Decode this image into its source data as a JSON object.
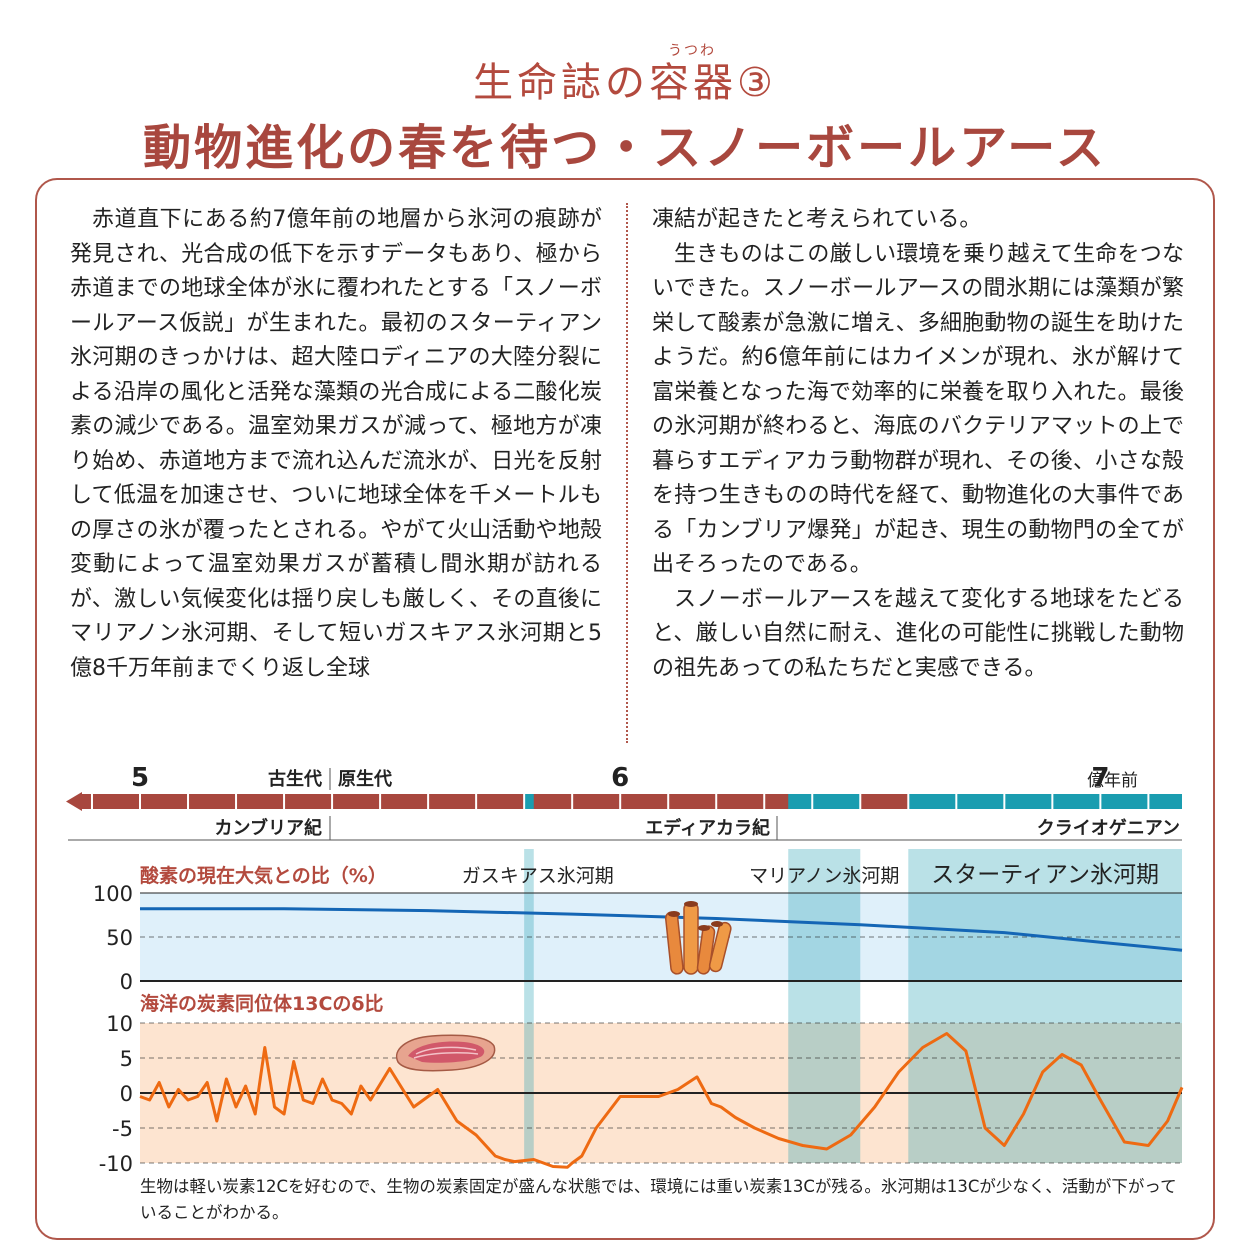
{
  "header": {
    "subtitle": "生命誌の容器③",
    "ruby": "うつわ",
    "title": "動物進化の春を待つ・スノーボールアース"
  },
  "body": {
    "left_paragraphs": [
      "赤道直下にある約7億年前の地層から氷河の痕跡が発見され、光合成の低下を示すデータもあり、極から赤道までの地球全体が氷に覆われたとする「スノーボールアース仮説」が生まれた。最初のスターティアン氷河期のきっかけは、超大陸ロディニアの大陸分裂による沿岸の風化と活発な藻類の光合成による二酸化炭素の減少である。温室効果ガスが減って、極地方が凍り始め、赤道地方まで流れ込んだ流氷が、日光を反射して低温を加速させ、ついに地球全体を千メートルもの厚さの氷が覆ったとされる。やがて火山活動や地殻変動によって温室効果ガスが蓄積し間氷期が訪れるが、激しい気候変化は揺り戻しも厳しく、その直後にマリアノン氷河期、そして短いガスキアス氷河期と5億8千万年前までくり返し全球"
    ],
    "right_paragraphs": [
      "凍結が起きたと考えられている。",
      "生きものはこの厳しい環境を乗り越えて生命をつないできた。スノーボールアースの間氷期には藻類が繁栄して酸素が急激に増え、多細胞動物の誕生を助けたようだ。約6億年前にはカイメンが現れ、氷が解けて富栄養となった海で効率的に栄養を取り入れた。最後の氷河期が終わると、海底のバクテリアマットの上で暮らすエディアカラ動物群が現れ、その後、小さな殻を持つ生きものの時代を経て、動物進化の大事件である「カンブリア爆発」が起き、現生の動物門の全てが出そろったのである。",
      "スノーボールアースを越えて変化する地球をたどると、厳しい自然に耐え、進化の可能性に挑戦した動物の祖先あっての私たちだと実感できる。"
    ]
  },
  "timeline": {
    "ticks": [
      {
        "label": "5",
        "value": 5
      },
      {
        "label": "6",
        "value": 6
      },
      {
        "label": "7",
        "value": 7
      }
    ],
    "unit": "億年前",
    "eras": [
      "古生代",
      "原生代"
    ],
    "periods": [
      "カンブリア紀",
      "エディアカラ紀",
      "クライオゲニアン"
    ],
    "glacials": [
      {
        "name": "ガスキアス氷河期",
        "start": 5.82,
        "end": 5.8
      },
      {
        "name": "マリアノン氷河期",
        "start": 6.5,
        "end": 6.35
      },
      {
        "name": "スターティアン氷河期",
        "start": 7.17,
        "end": 6.6
      }
    ]
  },
  "colors": {
    "accent": "#b34a3e",
    "timeline_bar": "#a8473e",
    "glacial_band": "#1a9db0",
    "oxygen_line": "#1466b5",
    "carbon_line": "#ee6a12",
    "oxygen_bg": "#dff0fa",
    "carbon_bg": "#fde4d0"
  },
  "icons": [
    "sponge-icon",
    "bacterial-mat-icon"
  ],
  "chart_data": [
    {
      "type": "line",
      "title": "酸素の現在大気との比（%）",
      "x_unit": "億年前",
      "x_range": [
        5,
        7.17
      ],
      "ylim": [
        0,
        100
      ],
      "yticks": [
        100,
        50,
        0
      ],
      "grid": true,
      "series": [
        {
          "x": [
            5.0,
            5.3,
            5.6,
            5.9,
            6.2,
            6.5,
            6.8,
            7.0,
            7.17
          ],
          "y": [
            82,
            82,
            80,
            76,
            71,
            64,
            55,
            44,
            35
          ]
        }
      ]
    },
    {
      "type": "line",
      "title": "海洋の炭素同位体13Cのδ比",
      "x_unit": "億年前",
      "x_range": [
        5,
        7.17
      ],
      "ylim": [
        -10,
        10
      ],
      "yticks": [
        10,
        5,
        0,
        -5,
        -10
      ],
      "grid": true,
      "series": [
        {
          "x": [
            5.0,
            5.02,
            5.04,
            5.06,
            5.08,
            5.1,
            5.12,
            5.14,
            5.16,
            5.18,
            5.2,
            5.22,
            5.24,
            5.26,
            5.28,
            5.3,
            5.32,
            5.34,
            5.36,
            5.38,
            5.4,
            5.42,
            5.44,
            5.46,
            5.48,
            5.52,
            5.57,
            5.62,
            5.66,
            5.7,
            5.74,
            5.76,
            5.78,
            5.82,
            5.86,
            5.89,
            5.9,
            5.92,
            5.95,
            6.0,
            6.05,
            6.08,
            6.12,
            6.16,
            6.19,
            6.21,
            6.24,
            6.28,
            6.33,
            6.38,
            6.43,
            6.48,
            6.53,
            6.58,
            6.63,
            6.68,
            6.72,
            6.76,
            6.8,
            6.84,
            6.88,
            6.92,
            6.96,
            7.0,
            7.05,
            7.1,
            7.14,
            7.17
          ],
          "y": [
            -0.5,
            -1,
            1.5,
            -2,
            0.5,
            -1,
            -0.5,
            1.5,
            -4,
            2,
            -2,
            1,
            -3,
            6.5,
            -2,
            -3,
            4.5,
            -1,
            -1.5,
            2,
            -1,
            -1.5,
            -3,
            1,
            -1,
            3.5,
            -2,
            0.5,
            -4,
            -6,
            -9,
            -9.5,
            -9.8,
            -9.5,
            -10.5,
            -10.6,
            -10,
            -9,
            -5,
            -0.5,
            -0.5,
            -0.5,
            0.5,
            2.3,
            -1.5,
            -2,
            -3.5,
            -5,
            -6.5,
            -7.5,
            -8,
            -6,
            -2,
            3,
            6.5,
            8.5,
            6,
            -5,
            -7.5,
            -3,
            3,
            5.5,
            4,
            -1,
            -7,
            -7.5,
            -4,
            0.8
          ]
        }
      ]
    }
  ],
  "caption": "生物は軽い炭素12Cを好むので、生物の炭素固定が盛んな状態では、環境には重い炭素13Cが残る。氷河期は13Cが少なく、活動が下がっていることがわかる。"
}
